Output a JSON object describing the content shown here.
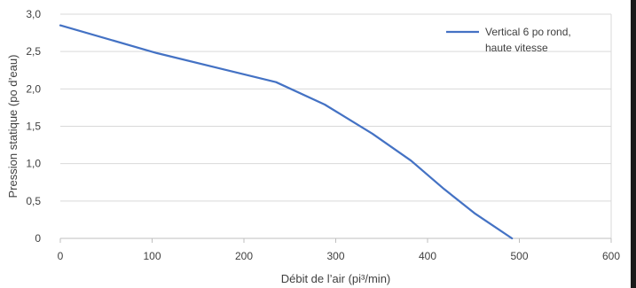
{
  "chart_data": {
    "type": "line",
    "xlabel": "Débit de l’air (pi³/min)",
    "ylabel": "Pression statique (po d’eau)",
    "xlim": [
      0,
      600
    ],
    "ylim": [
      0,
      3.0
    ],
    "x_ticks": [
      0,
      100,
      200,
      300,
      400,
      500,
      600
    ],
    "y_ticks": [
      0,
      0.5,
      1.0,
      1.5,
      2.0,
      2.5,
      3.0
    ],
    "x_tick_labels": [
      "0",
      "100",
      "200",
      "300",
      "400",
      "500",
      "600"
    ],
    "y_tick_labels": [
      "0",
      "0,5",
      "1,0",
      "1,5",
      "2,0",
      "2,5",
      "3,0"
    ],
    "grid": "horizontal",
    "legend_position": "top-right",
    "series": [
      {
        "name": "Vertical 6 po rond, haute vitesse",
        "legend_lines": [
          "Vertical 6 po rond,",
          "haute vitesse"
        ],
        "color": "#4472C4",
        "x": [
          0,
          105,
          235,
          288,
          340,
          382,
          418,
          452,
          492
        ],
        "y": [
          2.85,
          2.48,
          2.09,
          1.79,
          1.4,
          1.04,
          0.66,
          0.33,
          0.0
        ]
      }
    ]
  }
}
